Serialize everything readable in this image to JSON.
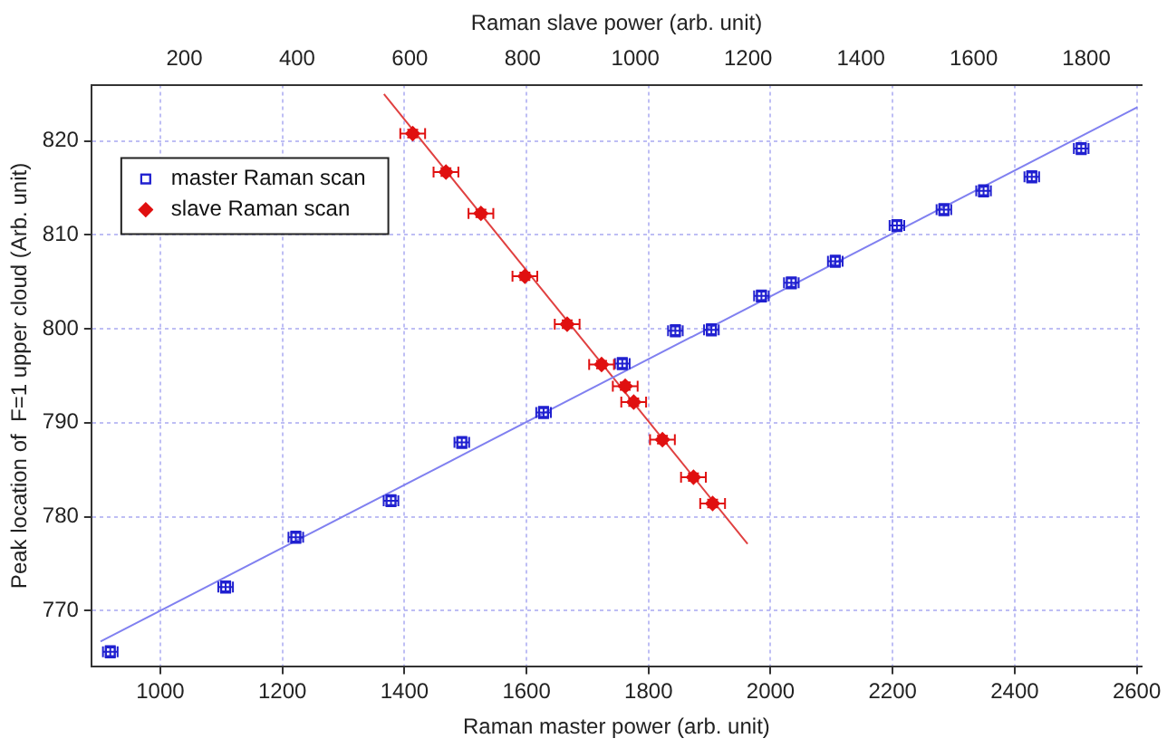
{
  "chart_data": {
    "type": "scatter",
    "xlabel": "Raman master power (arb. unit)",
    "x2label": "Raman slave power (arb. unit)",
    "ylabel": "Peak location of  F=1 upper cloud (Arb. unit)",
    "xlim": [
      887,
      2608
    ],
    "xticks": [
      1000,
      1200,
      1400,
      1600,
      1800,
      2000,
      2200,
      2400,
      2600
    ],
    "x2lim": [
      35,
      1898
    ],
    "x2ticks": [
      200,
      400,
      600,
      800,
      1000,
      1200,
      1400,
      1600,
      1800
    ],
    "ylim": [
      764,
      826
    ],
    "yticks": [
      770,
      780,
      790,
      800,
      810,
      820
    ],
    "grid": true,
    "legend": "top left",
    "series": [
      {
        "name": "master Raman scan",
        "color": "#2020d0",
        "marker": "square",
        "x": [
          918,
          1107,
          1222,
          1378,
          1494,
          1628,
          1757,
          1844,
          1903,
          1985,
          2034,
          2106,
          2207,
          2284,
          2349,
          2428,
          2509
        ],
        "values": [
          765.6,
          772.5,
          777.8,
          781.7,
          787.9,
          791.1,
          796.3,
          799.8,
          799.9,
          803.5,
          804.9,
          807.2,
          811.0,
          812.7,
          814.7,
          816.2,
          819.2
        ],
        "errors": [
          0.6,
          0.6,
          0.6,
          0.6,
          0.6,
          0.6,
          0.6,
          0.6,
          0.6,
          0.6,
          0.6,
          0.6,
          0.6,
          0.6,
          0.6,
          0.6,
          0.6
        ],
        "xerrors": [
          12,
          12,
          12,
          12,
          12,
          12,
          12,
          12,
          12,
          12,
          12,
          12,
          12,
          12,
          12,
          12,
          12
        ]
      },
      {
        "name": "slave Raman scan",
        "color": "#e01010",
        "marker": "diamond",
        "axis": "x2",
        "x": [
          605,
          664,
          726,
          804,
          879,
          940,
          982,
          997,
          1048,
          1103,
          1137
        ],
        "values": [
          820.8,
          816.7,
          812.3,
          805.6,
          800.5,
          796.2,
          793.9,
          792.2,
          788.2,
          784.2,
          781.4
        ],
        "errors": [
          0.4,
          0.4,
          0.4,
          0.4,
          0.4,
          0.4,
          0.4,
          0.4,
          0.4,
          0.4,
          0.4
        ],
        "xerrors": [
          22,
          22,
          22,
          22,
          22,
          22,
          22,
          22,
          22,
          22,
          22
        ]
      },
      {
        "type": "line",
        "color": "#8080f0",
        "marker": "none",
        "x": [
          902,
          2601
        ],
        "values": [
          766.7,
          823.6
        ]
      },
      {
        "type": "line",
        "color": "#e04040",
        "marker": "none",
        "axis": "x2",
        "x": [
          554,
          1199
        ],
        "values": [
          825.0,
          777.1
        ]
      }
    ]
  }
}
